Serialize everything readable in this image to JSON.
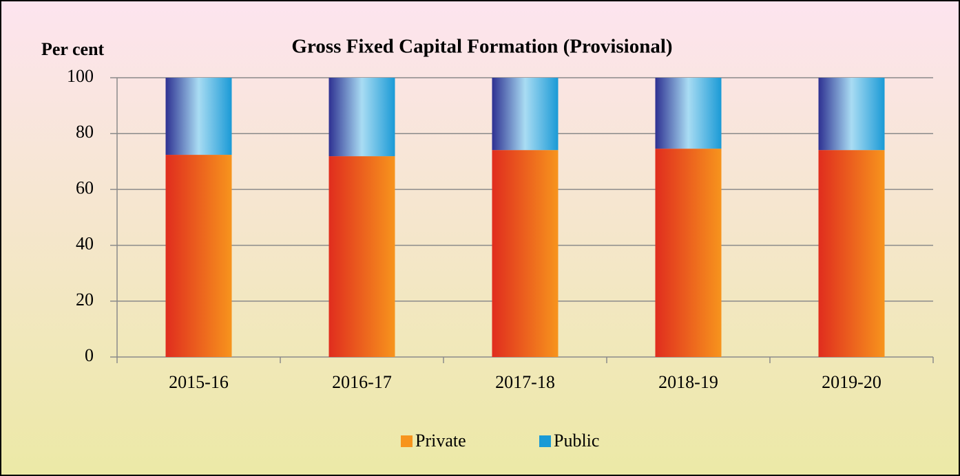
{
  "chart_data": {
    "type": "stacked_bar",
    "title": "Gross Fixed Capital Formation (Provisional)",
    "y_label": "Per cent",
    "categories": [
      "2015-16",
      "2016-17",
      "2017-18",
      "2018-19",
      "2019-20"
    ],
    "series": [
      {
        "name": "Private",
        "color": "#f7941d",
        "values": [
          72.4,
          71.9,
          74.1,
          74.6,
          74.1
        ]
      },
      {
        "name": "Public",
        "color": "#1a9ad6",
        "values": [
          27.6,
          28.1,
          25.9,
          25.4,
          25.9
        ]
      }
    ],
    "ylim": [
      0,
      100
    ],
    "yticks": [
      0,
      20,
      40,
      60,
      80,
      100
    ],
    "grid": true,
    "legend": "bottom"
  }
}
